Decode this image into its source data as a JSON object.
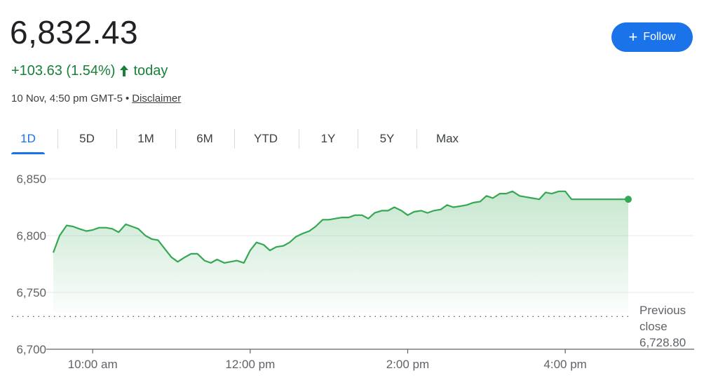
{
  "quote": {
    "price": "6,832.43",
    "change": "+103.63 (1.54%)",
    "change_period": "today",
    "timestamp": "10 Nov, 4:50 pm GMT-5",
    "disclaimer": "Disclaimer",
    "follow_label": "Follow"
  },
  "tabs": [
    "1D",
    "5D",
    "1M",
    "6M",
    "YTD",
    "1Y",
    "5Y",
    "Max"
  ],
  "active_tab": "1D",
  "colors": {
    "positive": "#188038",
    "line": "#34a853",
    "accent": "#1a73e8"
  },
  "chart_data": {
    "type": "area",
    "title": "",
    "xlabel": "",
    "ylabel": "",
    "x_tick_labels": [
      "10:00 am",
      "12:00 pm",
      "2:00 pm",
      "4:00 pm"
    ],
    "x_tick_hours": [
      10,
      12,
      14,
      16
    ],
    "y_tick_labels": [
      "6,850",
      "6,800",
      "6,750",
      "6,700"
    ],
    "y_ticks": [
      6850,
      6800,
      6750,
      6700
    ],
    "ylim": [
      6700,
      6850
    ],
    "xlim_hours": [
      9.5,
      16.8
    ],
    "grid": true,
    "previous_close": {
      "label_line1": "Previous",
      "label_line2": "close",
      "value_label": "6,728.80",
      "value": 6728.8
    },
    "series": [
      {
        "x_hours": [
          9.5,
          9.58,
          9.67,
          9.75,
          9.83,
          9.92,
          10.0,
          10.08,
          10.17,
          10.25,
          10.33,
          10.42,
          10.5,
          10.58,
          10.67,
          10.75,
          10.83,
          10.92,
          11.0,
          11.08,
          11.17,
          11.25,
          11.33,
          11.42,
          11.5,
          11.58,
          11.67,
          11.75,
          11.83,
          11.92,
          12.0,
          12.08,
          12.17,
          12.25,
          12.33,
          12.42,
          12.5,
          12.58,
          12.67,
          12.75,
          12.83,
          12.92,
          13.0,
          13.08,
          13.17,
          13.25,
          13.33,
          13.42,
          13.5,
          13.58,
          13.67,
          13.75,
          13.83,
          13.92,
          14.0,
          14.08,
          14.17,
          14.25,
          14.33,
          14.42,
          14.5,
          14.58,
          14.67,
          14.75,
          14.83,
          14.92,
          15.0,
          15.08,
          15.17,
          15.25,
          15.33,
          15.42,
          15.5,
          15.58,
          15.67,
          15.75,
          15.83,
          15.92,
          16.0,
          16.08,
          16.2,
          16.35,
          16.5,
          16.65,
          16.8
        ],
        "y": [
          6785,
          6800,
          6809,
          6808,
          6806,
          6804,
          6805,
          6807,
          6807,
          6806,
          6803,
          6810,
          6808,
          6806,
          6800,
          6797,
          6796,
          6788,
          6781,
          6777,
          6781,
          6784,
          6784,
          6778,
          6776,
          6779,
          6776,
          6777,
          6778,
          6776,
          6787,
          6794,
          6792,
          6787,
          6790,
          6791,
          6794,
          6799,
          6802,
          6804,
          6808,
          6814,
          6814,
          6815,
          6816,
          6816,
          6818,
          6818,
          6815,
          6820,
          6822,
          6822,
          6825,
          6822,
          6818,
          6821,
          6822,
          6820,
          6822,
          6823,
          6827,
          6825,
          6826,
          6827,
          6829,
          6830,
          6835,
          6833,
          6837,
          6837,
          6839,
          6835,
          6834,
          6833,
          6832,
          6838,
          6837,
          6839,
          6839,
          6832,
          6832,
          6832,
          6832,
          6832,
          6832
        ]
      }
    ]
  }
}
